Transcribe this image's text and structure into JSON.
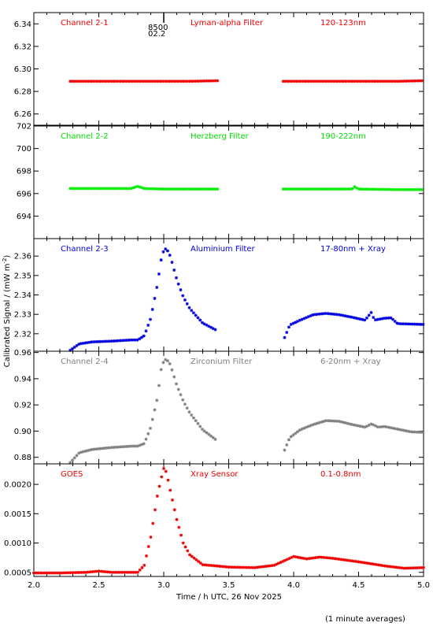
{
  "chart_data": {
    "type": "scatter",
    "x_range": [
      2.0,
      5.0
    ],
    "x_ticks": [
      "2.0",
      "2.5",
      "3.0",
      "3.5",
      "4.0",
      "4.5",
      "5.0"
    ],
    "xlabel": "Time / h UTC, 26 Nov 2025",
    "ylabel": "Calibrated Signal / (mW m",
    "ylabel_sup": "-2",
    "ylabel_close": ")",
    "footnote": "(1 minute averages)",
    "marker_label": {
      "top": "8500",
      "bottom": "02.2",
      "x": 3.0
    },
    "panels": [
      {
        "name": "Channel 2-1",
        "filter": "Lyman-alpha Filter",
        "band": "120-123nm",
        "color": "#ee0000",
        "label_color": "#ee0000",
        "ylim": [
          6.25,
          6.35
        ],
        "yticks": [
          6.26,
          6.28,
          6.3,
          6.32,
          6.34
        ],
        "ytick_labels": [
          "6.26",
          "6.28",
          "6.30",
          "6.32",
          "6.34"
        ],
        "series": [
          {
            "x": [
              2.28,
              2.5,
              2.75,
              3.0,
              3.2,
              3.42
            ],
            "y": [
              6.289,
              6.289,
              6.289,
              6.289,
              6.289,
              6.2895
            ]
          },
          {
            "x": [
              3.92,
              4.2,
              4.5,
              4.8,
              5.0
            ],
            "y": [
              6.289,
              6.289,
              6.289,
              6.289,
              6.2895
            ]
          }
        ]
      },
      {
        "name": "Channel 2-2",
        "filter": "Herzberg Filter",
        "band": "190-222nm",
        "color": "#00ee00",
        "label_color": "#00dd00",
        "ylim": [
          692,
          702
        ],
        "yticks": [
          694,
          696,
          698,
          700,
          702
        ],
        "ytick_labels": [
          "694",
          "696",
          "698",
          "700",
          "702"
        ],
        "series": [
          {
            "x": [
              2.28,
              2.5,
              2.75,
              2.8,
              2.85,
              3.0,
              3.2,
              3.42
            ],
            "y": [
              696.45,
              696.45,
              696.45,
              696.65,
              696.45,
              696.4,
              696.4,
              696.4
            ]
          },
          {
            "x": [
              3.92,
              4.2,
              4.45,
              4.47,
              4.5,
              4.8,
              5.0
            ],
            "y": [
              696.4,
              696.4,
              696.4,
              696.6,
              696.4,
              696.35,
              696.35
            ]
          }
        ]
      },
      {
        "name": "Channel 2-3",
        "filter": "Aluminium Filter",
        "band": "17-80nm + Xray",
        "color": "#0000dd",
        "label_color": "#0000dd",
        "ylim": [
          2.311,
          2.369
        ],
        "yticks": [
          2.32,
          2.33,
          2.34,
          2.35,
          2.36
        ],
        "ytick_labels": [
          "2.32",
          "2.33",
          "2.34",
          "2.35",
          "2.36"
        ],
        "series": [
          {
            "x": [
              2.28,
              2.35,
              2.45,
              2.6,
              2.75,
              2.8,
              2.85,
              2.9,
              2.95,
              2.98,
              3.0,
              3.02,
              3.05,
              3.1,
              3.15,
              3.2,
              3.3,
              3.4
            ],
            "y": [
              2.3115,
              2.3148,
              2.3158,
              2.3162,
              2.3168,
              2.3168,
              2.319,
              2.328,
              2.345,
              2.358,
              2.363,
              2.364,
              2.36,
              2.348,
              2.339,
              2.333,
              2.3255,
              2.322
            ]
          },
          {
            "x": [
              3.93,
              3.97,
              4.05,
              4.15,
              4.25,
              4.35,
              4.45,
              4.55,
              4.6,
              4.62,
              4.7,
              4.75,
              4.8,
              4.9,
              5.0
            ],
            "y": [
              2.318,
              2.3245,
              2.327,
              2.3298,
              2.3305,
              2.3298,
              2.3285,
              2.327,
              2.3312,
              2.327,
              2.328,
              2.3282,
              2.3252,
              2.325,
              2.3248
            ]
          }
        ]
      },
      {
        "name": "Channel 2-4",
        "filter": "Zirconium Filter",
        "band": "6-20nm + Xray",
        "color": "#808080",
        "label_color": "#808080",
        "ylim": [
          0.875,
          0.961
        ],
        "yticks": [
          0.88,
          0.9,
          0.92,
          0.94,
          0.96
        ],
        "ytick_labels": [
          "0.88",
          "0.90",
          "0.92",
          "0.94",
          "0.96"
        ],
        "series": [
          {
            "x": [
              2.28,
              2.35,
              2.45,
              2.6,
              2.75,
              2.8,
              2.85,
              2.9,
              2.95,
              2.98,
              3.0,
              3.02,
              3.05,
              3.1,
              3.15,
              3.2,
              3.3,
              3.4
            ],
            "y": [
              0.876,
              0.8835,
              0.886,
              0.8875,
              0.8885,
              0.8885,
              0.8905,
              0.903,
              0.925,
              0.947,
              0.9535,
              0.955,
              0.951,
              0.935,
              0.923,
              0.914,
              0.901,
              0.8935
            ]
          },
          {
            "x": [
              3.93,
              3.97,
              4.05,
              4.15,
              4.25,
              4.35,
              4.45,
              4.55,
              4.6,
              4.65,
              4.7,
              4.75,
              4.8,
              4.9,
              5.0
            ],
            "y": [
              0.8855,
              0.895,
              0.901,
              0.905,
              0.908,
              0.9075,
              0.905,
              0.903,
              0.9055,
              0.903,
              0.9035,
              0.9025,
              0.9015,
              0.8995,
              0.899
            ]
          }
        ]
      },
      {
        "name": "GOES",
        "filter": "Xray Sensor",
        "band": "0.1-0.8nm",
        "color": "#ee0000",
        "label_color": "#ee0000",
        "ylim": [
          0.00043,
          0.00235
        ],
        "yticks": [
          0.0005,
          0.001,
          0.0015,
          0.002
        ],
        "ytick_labels": [
          "0.0005",
          "0.0010",
          "0.0015",
          "0.0020"
        ],
        "series": [
          {
            "x": [
              2.0,
              2.2,
              2.4,
              2.5,
              2.6,
              2.8,
              2.85,
              2.9,
              2.95,
              2.98,
              3.0,
              3.02,
              3.05,
              3.1,
              3.15,
              3.2,
              3.3,
              3.5,
              3.7,
              3.85,
              3.95,
              4.0,
              4.1,
              4.2,
              4.3,
              4.5,
              4.7,
              4.85,
              5.0
            ],
            "y": [
              0.00049,
              0.00049,
              0.0005,
              0.00052,
              0.0005,
              0.0005,
              0.00062,
              0.0011,
              0.0018,
              0.0021,
              0.00227,
              0.00221,
              0.0019,
              0.0014,
              0.001,
              0.0008,
              0.00063,
              0.00059,
              0.00058,
              0.00062,
              0.00072,
              0.00077,
              0.00073,
              0.00076,
              0.00074,
              0.00068,
              0.00061,
              0.00057,
              0.00058
            ]
          }
        ]
      }
    ]
  }
}
